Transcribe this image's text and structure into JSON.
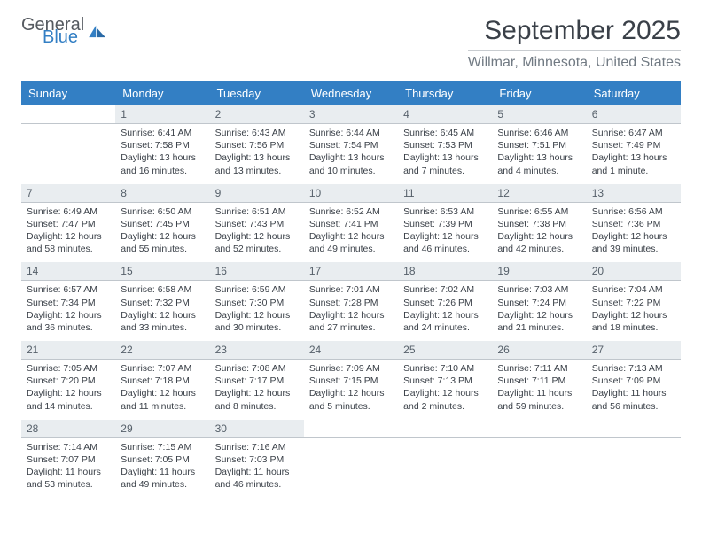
{
  "logo": {
    "word1": "General",
    "word2": "Blue",
    "color1": "#555a60",
    "color2": "#337fc4"
  },
  "title": "September 2025",
  "location": "Willmar, Minnesota, United States",
  "weekday_labels": [
    "Sunday",
    "Monday",
    "Tuesday",
    "Wednesday",
    "Thursday",
    "Friday",
    "Saturday"
  ],
  "colors": {
    "header_bg": "#337fc4",
    "header_text": "#ffffff",
    "daynum_bg": "#e9edf0",
    "daynum_text": "#56606a",
    "body_text": "#3a4048",
    "divider": "#c0c6cc",
    "page_bg": "#ffffff"
  },
  "fonts": {
    "title_size": 30,
    "location_size": 16,
    "weekday_size": 13,
    "daynum_size": 12,
    "detail_size": 10.5
  },
  "weeks": [
    {
      "nums": [
        "",
        "1",
        "2",
        "3",
        "4",
        "5",
        "6"
      ],
      "details": [
        "",
        "Sunrise: 6:41 AM\nSunset: 7:58 PM\nDaylight: 13 hours and 16 minutes.",
        "Sunrise: 6:43 AM\nSunset: 7:56 PM\nDaylight: 13 hours and 13 minutes.",
        "Sunrise: 6:44 AM\nSunset: 7:54 PM\nDaylight: 13 hours and 10 minutes.",
        "Sunrise: 6:45 AM\nSunset: 7:53 PM\nDaylight: 13 hours and 7 minutes.",
        "Sunrise: 6:46 AM\nSunset: 7:51 PM\nDaylight: 13 hours and 4 minutes.",
        "Sunrise: 6:47 AM\nSunset: 7:49 PM\nDaylight: 13 hours and 1 minute."
      ]
    },
    {
      "nums": [
        "7",
        "8",
        "9",
        "10",
        "11",
        "12",
        "13"
      ],
      "details": [
        "Sunrise: 6:49 AM\nSunset: 7:47 PM\nDaylight: 12 hours and 58 minutes.",
        "Sunrise: 6:50 AM\nSunset: 7:45 PM\nDaylight: 12 hours and 55 minutes.",
        "Sunrise: 6:51 AM\nSunset: 7:43 PM\nDaylight: 12 hours and 52 minutes.",
        "Sunrise: 6:52 AM\nSunset: 7:41 PM\nDaylight: 12 hours and 49 minutes.",
        "Sunrise: 6:53 AM\nSunset: 7:39 PM\nDaylight: 12 hours and 46 minutes.",
        "Sunrise: 6:55 AM\nSunset: 7:38 PM\nDaylight: 12 hours and 42 minutes.",
        "Sunrise: 6:56 AM\nSunset: 7:36 PM\nDaylight: 12 hours and 39 minutes."
      ]
    },
    {
      "nums": [
        "14",
        "15",
        "16",
        "17",
        "18",
        "19",
        "20"
      ],
      "details": [
        "Sunrise: 6:57 AM\nSunset: 7:34 PM\nDaylight: 12 hours and 36 minutes.",
        "Sunrise: 6:58 AM\nSunset: 7:32 PM\nDaylight: 12 hours and 33 minutes.",
        "Sunrise: 6:59 AM\nSunset: 7:30 PM\nDaylight: 12 hours and 30 minutes.",
        "Sunrise: 7:01 AM\nSunset: 7:28 PM\nDaylight: 12 hours and 27 minutes.",
        "Sunrise: 7:02 AM\nSunset: 7:26 PM\nDaylight: 12 hours and 24 minutes.",
        "Sunrise: 7:03 AM\nSunset: 7:24 PM\nDaylight: 12 hours and 21 minutes.",
        "Sunrise: 7:04 AM\nSunset: 7:22 PM\nDaylight: 12 hours and 18 minutes."
      ]
    },
    {
      "nums": [
        "21",
        "22",
        "23",
        "24",
        "25",
        "26",
        "27"
      ],
      "details": [
        "Sunrise: 7:05 AM\nSunset: 7:20 PM\nDaylight: 12 hours and 14 minutes.",
        "Sunrise: 7:07 AM\nSunset: 7:18 PM\nDaylight: 12 hours and 11 minutes.",
        "Sunrise: 7:08 AM\nSunset: 7:17 PM\nDaylight: 12 hours and 8 minutes.",
        "Sunrise: 7:09 AM\nSunset: 7:15 PM\nDaylight: 12 hours and 5 minutes.",
        "Sunrise: 7:10 AM\nSunset: 7:13 PM\nDaylight: 12 hours and 2 minutes.",
        "Sunrise: 7:11 AM\nSunset: 7:11 PM\nDaylight: 11 hours and 59 minutes.",
        "Sunrise: 7:13 AM\nSunset: 7:09 PM\nDaylight: 11 hours and 56 minutes."
      ]
    },
    {
      "nums": [
        "28",
        "29",
        "30",
        "",
        "",
        "",
        ""
      ],
      "details": [
        "Sunrise: 7:14 AM\nSunset: 7:07 PM\nDaylight: 11 hours and 53 minutes.",
        "Sunrise: 7:15 AM\nSunset: 7:05 PM\nDaylight: 11 hours and 49 minutes.",
        "Sunrise: 7:16 AM\nSunset: 7:03 PM\nDaylight: 11 hours and 46 minutes.",
        "",
        "",
        "",
        ""
      ]
    }
  ]
}
